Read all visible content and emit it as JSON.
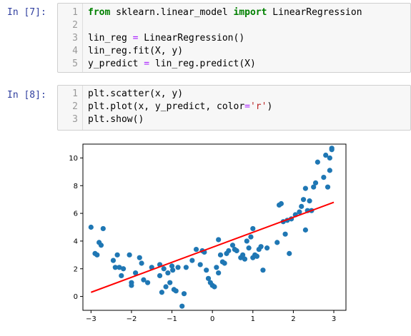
{
  "cells": [
    {
      "prompt": "In [7]:",
      "lines": [
        {
          "no": "1",
          "segments": [
            {
              "t": "from",
              "c": "kw"
            },
            {
              "t": " sklearn.linear_model ",
              "c": ""
            },
            {
              "t": "import",
              "c": "kw"
            },
            {
              "t": " LinearRegression",
              "c": ""
            }
          ]
        },
        {
          "no": "2",
          "segments": []
        },
        {
          "no": "3",
          "segments": [
            {
              "t": "lin_reg ",
              "c": ""
            },
            {
              "t": "=",
              "c": "op"
            },
            {
              "t": " LinearRegression()",
              "c": ""
            }
          ]
        },
        {
          "no": "4",
          "segments": [
            {
              "t": "lin_reg.fit(X, y)",
              "c": ""
            }
          ]
        },
        {
          "no": "5",
          "segments": [
            {
              "t": "y_predict ",
              "c": ""
            },
            {
              "t": "=",
              "c": "op"
            },
            {
              "t": " lin_reg.predict(X)",
              "c": ""
            }
          ]
        }
      ]
    },
    {
      "prompt": "In [8]:",
      "lines": [
        {
          "no": "1",
          "segments": [
            {
              "t": "plt.scatter(x, y)",
              "c": ""
            }
          ]
        },
        {
          "no": "2",
          "segments": [
            {
              "t": "plt.plot(x, y_predict, color",
              "c": ""
            },
            {
              "t": "=",
              "c": "op"
            },
            {
              "t": "'r'",
              "c": "str"
            },
            {
              "t": ")",
              "c": ""
            }
          ]
        },
        {
          "no": "3",
          "segments": [
            {
              "t": "plt.show()",
              "c": ""
            }
          ]
        }
      ]
    }
  ],
  "chart_data": {
    "type": "scatter",
    "xlim": [
      -3.2,
      3.3
    ],
    "ylim": [
      -1.0,
      11.0
    ],
    "x_ticks": [
      -3,
      -2,
      -1,
      0,
      1,
      2,
      3
    ],
    "x_tick_labels": [
      "−3",
      "−2",
      "−1",
      "0",
      "1",
      "2",
      "3"
    ],
    "y_ticks": [
      0,
      2,
      4,
      6,
      8,
      10
    ],
    "y_tick_labels": [
      "0",
      "2",
      "4",
      "6",
      "8",
      "10"
    ],
    "point_color": "#1f77b4",
    "line_color": "#ff0000",
    "points": [
      [
        -3.0,
        5.0
      ],
      [
        -2.9,
        3.1
      ],
      [
        -2.85,
        3.0
      ],
      [
        -2.8,
        3.9
      ],
      [
        -2.7,
        4.9
      ],
      [
        -2.75,
        3.7
      ],
      [
        -2.45,
        2.6
      ],
      [
        -2.4,
        2.1
      ],
      [
        -2.35,
        3.0
      ],
      [
        -2.3,
        2.1
      ],
      [
        -2.25,
        1.5
      ],
      [
        -2.2,
        2.0
      ],
      [
        -2.05,
        3.0
      ],
      [
        -2.0,
        1.0
      ],
      [
        -2.0,
        0.8
      ],
      [
        -1.9,
        1.7
      ],
      [
        -1.8,
        2.8
      ],
      [
        -1.75,
        2.4
      ],
      [
        -1.7,
        1.2
      ],
      [
        -1.6,
        1.0
      ],
      [
        -1.5,
        2.1
      ],
      [
        -1.3,
        2.3
      ],
      [
        -1.3,
        1.5
      ],
      [
        -1.25,
        0.3
      ],
      [
        -1.2,
        2.0
      ],
      [
        -1.15,
        0.7
      ],
      [
        -1.1,
        1.7
      ],
      [
        -1.05,
        1.0
      ],
      [
        -1.0,
        2.2
      ],
      [
        -0.98,
        1.9
      ],
      [
        -0.95,
        0.5
      ],
      [
        -0.9,
        0.4
      ],
      [
        -0.85,
        2.1
      ],
      [
        -0.75,
        -0.7
      ],
      [
        -0.7,
        0.2
      ],
      [
        -0.65,
        2.1
      ],
      [
        -0.5,
        2.6
      ],
      [
        -0.4,
        3.4
      ],
      [
        -0.3,
        2.3
      ],
      [
        -0.25,
        3.3
      ],
      [
        -0.2,
        3.2
      ],
      [
        -0.15,
        1.9
      ],
      [
        -0.1,
        1.3
      ],
      [
        -0.05,
        1.0
      ],
      [
        0.0,
        0.8
      ],
      [
        0.05,
        0.7
      ],
      [
        0.1,
        2.1
      ],
      [
        0.15,
        1.7
      ],
      [
        0.15,
        4.1
      ],
      [
        0.2,
        3.0
      ],
      [
        0.25,
        2.5
      ],
      [
        0.3,
        2.4
      ],
      [
        0.35,
        3.1
      ],
      [
        0.4,
        3.3
      ],
      [
        0.5,
        3.7
      ],
      [
        0.55,
        3.4
      ],
      [
        0.6,
        3.3
      ],
      [
        0.7,
        2.8
      ],
      [
        0.75,
        3.0
      ],
      [
        0.8,
        2.7
      ],
      [
        0.85,
        4.0
      ],
      [
        0.9,
        3.5
      ],
      [
        0.95,
        4.3
      ],
      [
        1.0,
        4.9
      ],
      [
        1.0,
        2.8
      ],
      [
        1.05,
        3.0
      ],
      [
        1.1,
        2.9
      ],
      [
        1.15,
        3.4
      ],
      [
        1.2,
        3.6
      ],
      [
        1.25,
        1.9
      ],
      [
        1.35,
        3.5
      ],
      [
        1.6,
        3.9
      ],
      [
        1.65,
        6.6
      ],
      [
        1.7,
        6.7
      ],
      [
        1.75,
        5.4
      ],
      [
        1.8,
        4.5
      ],
      [
        1.85,
        5.5
      ],
      [
        1.9,
        3.1
      ],
      [
        1.95,
        5.6
      ],
      [
        2.05,
        5.9
      ],
      [
        2.15,
        6.1
      ],
      [
        2.2,
        6.5
      ],
      [
        2.25,
        7.0
      ],
      [
        2.3,
        4.8
      ],
      [
        2.3,
        7.8
      ],
      [
        2.35,
        6.2
      ],
      [
        2.4,
        6.9
      ],
      [
        2.45,
        6.2
      ],
      [
        2.5,
        7.9
      ],
      [
        2.55,
        8.2
      ],
      [
        2.6,
        9.7
      ],
      [
        2.75,
        8.6
      ],
      [
        2.8,
        10.2
      ],
      [
        2.85,
        7.9
      ],
      [
        2.9,
        10.0
      ],
      [
        2.95,
        10.7
      ],
      [
        2.95,
        10.6
      ],
      [
        2.9,
        9.1
      ]
    ],
    "fit_line": {
      "x": [
        -3.0,
        3.0
      ],
      "y": [
        0.3,
        6.8
      ]
    }
  }
}
